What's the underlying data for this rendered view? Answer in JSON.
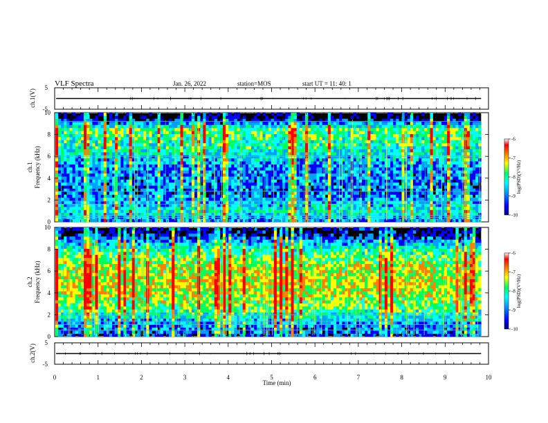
{
  "header": {
    "title": "VLF Spectra",
    "date": "Jan. 26, 2022",
    "station": "station=MOS",
    "start_ut": "start UT =  11: 40: 1"
  },
  "chart_data": [
    {
      "type": "line",
      "panel": "ch1-waveform",
      "ylabel": "ch.1(V)",
      "ylim": [
        -5,
        5
      ],
      "y_ticks": [
        "5",
        "-5"
      ],
      "baseline_value": 0
    },
    {
      "type": "heatmap",
      "panel": "ch1-spectrogram",
      "ylabel_line1": "ch.1",
      "ylabel_line2": "Frequency (kHz)",
      "ylim": [
        0,
        10
      ],
      "y_ticks": [
        "0",
        "2",
        "4",
        "6",
        "8",
        "10"
      ],
      "colorbar": {
        "label": "log(PSD)(V²/Hz)",
        "range": [
          -10,
          -6
        ],
        "ticks": [
          "-6",
          "-7",
          "-8",
          "-9",
          "-10"
        ]
      },
      "horizontal_lines_khz": [
        0.4,
        0.6,
        1.6,
        1.9,
        2.8,
        6.0,
        9.2
      ],
      "band_intensity_profile": [
        {
          "f": 0.0,
          "level": 0.3
        },
        {
          "f": 1.0,
          "level": 0.45
        },
        {
          "f": 2.5,
          "level": 0.25
        },
        {
          "f": 5.0,
          "level": 0.3
        },
        {
          "f": 7.0,
          "level": 0.5
        },
        {
          "f": 8.5,
          "level": 0.55
        },
        {
          "f": 9.5,
          "level": 0.05
        }
      ]
    },
    {
      "type": "heatmap",
      "panel": "ch2-spectrogram",
      "ylabel_line1": "ch.2",
      "ylabel_line2": "Frequency (kHz)",
      "ylim": [
        0,
        10
      ],
      "y_ticks": [
        "0",
        "2",
        "4",
        "6",
        "8",
        "10"
      ],
      "colorbar": {
        "label": "log(PSD)(V²/Hz)",
        "range": [
          -10,
          -6
        ],
        "ticks": [
          "-6",
          "-7",
          "-8",
          "-9",
          "-10"
        ]
      },
      "horizontal_lines_khz": [
        0.6,
        1.1,
        1.4,
        2.0
      ],
      "band_intensity_profile": [
        {
          "f": 0.0,
          "level": 0.2
        },
        {
          "f": 1.0,
          "level": 0.3
        },
        {
          "f": 2.5,
          "level": 0.55
        },
        {
          "f": 4.5,
          "level": 0.7
        },
        {
          "f": 6.5,
          "level": 0.65
        },
        {
          "f": 8.0,
          "level": 0.5
        },
        {
          "f": 9.5,
          "level": 0.1
        }
      ]
    },
    {
      "type": "line",
      "panel": "ch2-waveform",
      "ylabel": "ch.2(V)",
      "ylim": [
        -5,
        5
      ],
      "y_ticks": [
        "5",
        "-5"
      ],
      "baseline_value": 0
    }
  ],
  "x_axis": {
    "label": "Time (min)",
    "xlim": [
      0,
      10
    ],
    "ticks": [
      "0",
      "1",
      "2",
      "3",
      "4",
      "5",
      "6",
      "7",
      "8",
      "9",
      "10"
    ],
    "data_end_min": 9.83
  },
  "colors": {
    "background": "#000000",
    "colormap": [
      "#000088",
      "#0000ff",
      "#00a0ff",
      "#00ffff",
      "#00ff60",
      "#ffff00",
      "#ff8000",
      "#ff0000",
      "#ffffff"
    ]
  }
}
